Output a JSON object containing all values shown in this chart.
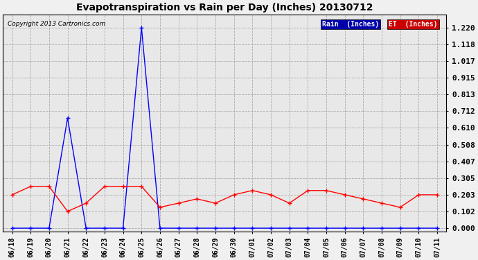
{
  "title": "Evapotranspiration vs Rain per Day (Inches) 20130712",
  "copyright": "Copyright 2013 Cartronics.com",
  "labels": [
    "06/18",
    "06/19",
    "06/20",
    "06/21",
    "06/22",
    "06/23",
    "06/24",
    "06/25",
    "06/26",
    "06/27",
    "06/28",
    "06/29",
    "06/30",
    "07/01",
    "07/02",
    "07/03",
    "07/04",
    "07/05",
    "07/06",
    "07/07",
    "07/08",
    "07/09",
    "07/10",
    "07/11"
  ],
  "rain": [
    0.0,
    0.0,
    0.0,
    0.67,
    0.0,
    0.0,
    0.0,
    1.22,
    0.0,
    0.0,
    0.0,
    0.0,
    0.0,
    0.0,
    0.0,
    0.0,
    0.0,
    0.0,
    0.0,
    0.0,
    0.0,
    0.0,
    0.0,
    0.0
  ],
  "et": [
    0.203,
    0.254,
    0.254,
    0.102,
    0.152,
    0.254,
    0.254,
    0.254,
    0.127,
    0.152,
    0.178,
    0.152,
    0.203,
    0.229,
    0.203,
    0.152,
    0.229,
    0.229,
    0.203,
    0.178,
    0.152,
    0.127,
    0.203,
    0.203
  ],
  "rain_color": "#0000ff",
  "et_color": "#ff0000",
  "background_color": "#f0f0f0",
  "plot_bg_color": "#e8e8e8",
  "grid_color": "#aaaaaa",
  "yticks": [
    0.0,
    0.102,
    0.203,
    0.305,
    0.407,
    0.508,
    0.61,
    0.712,
    0.813,
    0.915,
    1.017,
    1.118,
    1.22
  ],
  "ylim": [
    -0.02,
    1.3
  ],
  "legend_rain_label": "Rain  (Inches)",
  "legend_et_label": "ET  (Inches)",
  "legend_rain_bg": "#0000aa",
  "legend_et_bg": "#cc0000"
}
